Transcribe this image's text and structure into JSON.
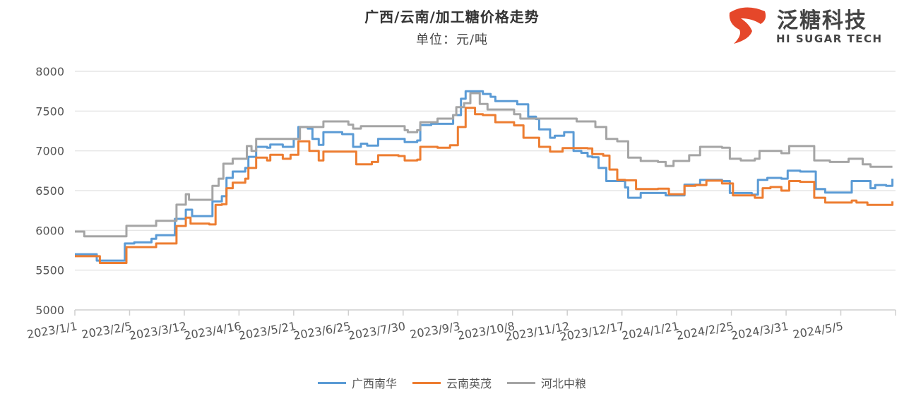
{
  "logo": {
    "text_cn": "泛糖科技",
    "text_en": "HI SUGAR TECH",
    "color": "#e5472a"
  },
  "chart_data": {
    "type": "line",
    "title": "广西/云南/加工糖价格走势",
    "subtitle": "单位：元/吨",
    "xlabel": "",
    "ylabel": "",
    "x_unit": "days since 2023/1/1",
    "xlim": [
      0,
      525
    ],
    "ylim": [
      5000,
      8000
    ],
    "yticks": [
      5000,
      5500,
      6000,
      6500,
      7000,
      7500,
      8000
    ],
    "xticks": [
      {
        "day": 0,
        "label": "2023/1/1"
      },
      {
        "day": 35,
        "label": "2023/2/5"
      },
      {
        "day": 70,
        "label": "2023/3/12"
      },
      {
        "day": 105,
        "label": "2023/4/16"
      },
      {
        "day": 140,
        "label": "2023/5/21"
      },
      {
        "day": 175,
        "label": "2023/6/25"
      },
      {
        "day": 210,
        "label": "2023/7/30"
      },
      {
        "day": 245,
        "label": "2023/9/3"
      },
      {
        "day": 280,
        "label": "2023/10/8"
      },
      {
        "day": 315,
        "label": "2023/11/12"
      },
      {
        "day": 350,
        "label": "2023/12/17"
      },
      {
        "day": 385,
        "label": "2024/1/21"
      },
      {
        "day": 420,
        "label": "2024/2/25"
      },
      {
        "day": 455,
        "label": "2024/3/31"
      },
      {
        "day": 490,
        "label": "2024/5/5"
      }
    ],
    "grid": true,
    "legend_position": "bottom",
    "series": [
      {
        "name": "广西南华",
        "color": "#5b9bd5",
        "points": [
          [
            0,
            5700
          ],
          [
            1,
            5700
          ],
          [
            14,
            5620
          ],
          [
            32,
            5835
          ],
          [
            38,
            5850
          ],
          [
            49,
            5895
          ],
          [
            52,
            5940
          ],
          [
            59,
            5940
          ],
          [
            64,
            6145
          ],
          [
            71,
            6260
          ],
          [
            75,
            6180
          ],
          [
            86,
            6180
          ],
          [
            88,
            6365
          ],
          [
            94,
            6430
          ],
          [
            97,
            6660
          ],
          [
            101,
            6740
          ],
          [
            109,
            6785
          ],
          [
            111,
            6925
          ],
          [
            116,
            7050
          ],
          [
            123,
            7040
          ],
          [
            125,
            7080
          ],
          [
            133,
            7050
          ],
          [
            140,
            7150
          ],
          [
            143,
            7300
          ],
          [
            149,
            7280
          ],
          [
            152,
            7150
          ],
          [
            156,
            7075
          ],
          [
            159,
            7235
          ],
          [
            171,
            7210
          ],
          [
            178,
            7050
          ],
          [
            183,
            7090
          ],
          [
            187,
            7065
          ],
          [
            194,
            7150
          ],
          [
            207,
            7150
          ],
          [
            211,
            7110
          ],
          [
            219,
            7130
          ],
          [
            221,
            7325
          ],
          [
            228,
            7340
          ],
          [
            242,
            7450
          ],
          [
            247,
            7655
          ],
          [
            250,
            7750
          ],
          [
            261,
            7715
          ],
          [
            266,
            7680
          ],
          [
            269,
            7625
          ],
          [
            283,
            7585
          ],
          [
            290,
            7430
          ],
          [
            295,
            7400
          ],
          [
            297,
            7270
          ],
          [
            304,
            7165
          ],
          [
            307,
            7190
          ],
          [
            313,
            7235
          ],
          [
            319,
            7000
          ],
          [
            324,
            6975
          ],
          [
            328,
            6930
          ],
          [
            331,
            6920
          ],
          [
            335,
            6785
          ],
          [
            340,
            6620
          ],
          [
            352,
            6540
          ],
          [
            354,
            6410
          ],
          [
            362,
            6470
          ],
          [
            378,
            6440
          ],
          [
            390,
            6575
          ],
          [
            400,
            6635
          ],
          [
            414,
            6620
          ],
          [
            419,
            6470
          ],
          [
            433,
            6450
          ],
          [
            437,
            6635
          ],
          [
            443,
            6660
          ],
          [
            452,
            6650
          ],
          [
            456,
            6750
          ],
          [
            464,
            6740
          ],
          [
            474,
            6520
          ],
          [
            480,
            6475
          ],
          [
            491,
            6475
          ],
          [
            497,
            6620
          ],
          [
            509,
            6530
          ],
          [
            512,
            6570
          ],
          [
            519,
            6560
          ],
          [
            523,
            6650
          ]
        ]
      },
      {
        "name": "云南英茂",
        "color": "#ed7d31",
        "points": [
          [
            0,
            5675
          ],
          [
            1,
            5675
          ],
          [
            16,
            5590
          ],
          [
            33,
            5790
          ],
          [
            49,
            5790
          ],
          [
            52,
            5835
          ],
          [
            60,
            5835
          ],
          [
            65,
            6055
          ],
          [
            71,
            6160
          ],
          [
            74,
            6085
          ],
          [
            86,
            6075
          ],
          [
            90,
            6320
          ],
          [
            94,
            6330
          ],
          [
            97,
            6530
          ],
          [
            101,
            6600
          ],
          [
            109,
            6650
          ],
          [
            111,
            6785
          ],
          [
            116,
            6915
          ],
          [
            123,
            6880
          ],
          [
            125,
            6950
          ],
          [
            133,
            6900
          ],
          [
            138,
            6950
          ],
          [
            143,
            7120
          ],
          [
            150,
            7000
          ],
          [
            156,
            6880
          ],
          [
            159,
            6990
          ],
          [
            171,
            6990
          ],
          [
            180,
            6830
          ],
          [
            190,
            6860
          ],
          [
            194,
            6945
          ],
          [
            207,
            6935
          ],
          [
            211,
            6880
          ],
          [
            219,
            6890
          ],
          [
            221,
            7050
          ],
          [
            232,
            7040
          ],
          [
            240,
            7070
          ],
          [
            245,
            7300
          ],
          [
            250,
            7540
          ],
          [
            256,
            7460
          ],
          [
            261,
            7450
          ],
          [
            269,
            7360
          ],
          [
            281,
            7320
          ],
          [
            287,
            7165
          ],
          [
            297,
            7050
          ],
          [
            304,
            6990
          ],
          [
            311,
            6990
          ],
          [
            312,
            7035
          ],
          [
            328,
            7030
          ],
          [
            331,
            6960
          ],
          [
            338,
            6940
          ],
          [
            342,
            6765
          ],
          [
            347,
            6635
          ],
          [
            352,
            6630
          ],
          [
            359,
            6520
          ],
          [
            373,
            6525
          ],
          [
            380,
            6455
          ],
          [
            390,
            6560
          ],
          [
            397,
            6570
          ],
          [
            404,
            6625
          ],
          [
            414,
            6590
          ],
          [
            421,
            6440
          ],
          [
            435,
            6410
          ],
          [
            440,
            6530
          ],
          [
            445,
            6545
          ],
          [
            452,
            6500
          ],
          [
            457,
            6620
          ],
          [
            464,
            6610
          ],
          [
            473,
            6410
          ],
          [
            480,
            6350
          ],
          [
            492,
            6350
          ],
          [
            497,
            6375
          ],
          [
            500,
            6350
          ],
          [
            507,
            6320
          ],
          [
            521,
            6320
          ],
          [
            523,
            6365
          ]
        ]
      },
      {
        "name": "河北中粮",
        "color": "#a5a5a5",
        "points": [
          [
            0,
            5985
          ],
          [
            6,
            5925
          ],
          [
            16,
            5925
          ],
          [
            33,
            6057
          ],
          [
            51,
            6057
          ],
          [
            52,
            6120
          ],
          [
            59,
            6120
          ],
          [
            65,
            6323
          ],
          [
            71,
            6455
          ],
          [
            73,
            6385
          ],
          [
            85,
            6385
          ],
          [
            88,
            6560
          ],
          [
            92,
            6650
          ],
          [
            95,
            6838
          ],
          [
            101,
            6900
          ],
          [
            107,
            6900
          ],
          [
            110,
            7060
          ],
          [
            113,
            7000
          ],
          [
            116,
            7150
          ],
          [
            144,
            7300
          ],
          [
            159,
            7370
          ],
          [
            169,
            7370
          ],
          [
            175,
            7330
          ],
          [
            178,
            7280
          ],
          [
            183,
            7310
          ],
          [
            195,
            7310
          ],
          [
            211,
            7260
          ],
          [
            213,
            7235
          ],
          [
            219,
            7260
          ],
          [
            221,
            7360
          ],
          [
            228,
            7360
          ],
          [
            232,
            7405
          ],
          [
            242,
            7450
          ],
          [
            244,
            7550
          ],
          [
            249,
            7600
          ],
          [
            253,
            7725
          ],
          [
            259,
            7590
          ],
          [
            264,
            7520
          ],
          [
            281,
            7460
          ],
          [
            285,
            7405
          ],
          [
            321,
            7370
          ],
          [
            333,
            7300
          ],
          [
            340,
            7150
          ],
          [
            347,
            7120
          ],
          [
            354,
            6915
          ],
          [
            362,
            6873
          ],
          [
            373,
            6860
          ],
          [
            378,
            6810
          ],
          [
            383,
            6873
          ],
          [
            393,
            6945
          ],
          [
            400,
            7050
          ],
          [
            414,
            7040
          ],
          [
            419,
            6900
          ],
          [
            426,
            6880
          ],
          [
            435,
            6900
          ],
          [
            438,
            7000
          ],
          [
            452,
            6970
          ],
          [
            457,
            7060
          ],
          [
            464,
            7060
          ],
          [
            473,
            6880
          ],
          [
            483,
            6860
          ],
          [
            490,
            6860
          ],
          [
            495,
            6900
          ],
          [
            504,
            6830
          ],
          [
            509,
            6800
          ],
          [
            523,
            6800
          ]
        ]
      }
    ]
  }
}
